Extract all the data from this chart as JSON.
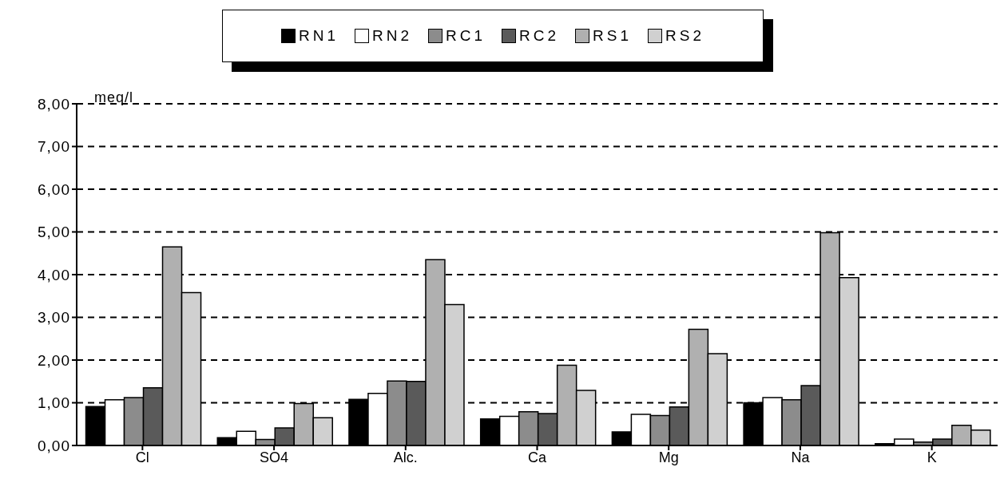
{
  "chart_data": {
    "type": "bar",
    "ylabel": "meq/l",
    "categories": [
      "Cl",
      "SO4",
      "Alc.",
      "Ca",
      "Mg",
      "Na",
      "K"
    ],
    "series": [
      {
        "name": "RN1",
        "color": "#000000",
        "values": [
          0.91,
          0.18,
          1.08,
          0.62,
          0.32,
          1.0,
          0.04
        ]
      },
      {
        "name": "RN2",
        "color": "#ffffff",
        "values": [
          1.07,
          0.33,
          1.22,
          0.68,
          0.73,
          1.12,
          0.15
        ]
      },
      {
        "name": "RC1",
        "color": "#8c8c8c",
        "values": [
          1.12,
          0.14,
          1.51,
          0.79,
          0.7,
          1.07,
          0.08
        ]
      },
      {
        "name": "RC2",
        "color": "#5a5a5a",
        "values": [
          1.35,
          0.41,
          1.5,
          0.75,
          0.9,
          1.4,
          0.15
        ]
      },
      {
        "name": "RS1",
        "color": "#b0b0b0",
        "values": [
          4.65,
          0.98,
          4.35,
          1.88,
          2.72,
          4.98,
          0.47
        ]
      },
      {
        "name": "RS2",
        "color": "#d0d0d0",
        "values": [
          3.58,
          0.65,
          3.3,
          1.29,
          2.15,
          3.93,
          0.36
        ]
      }
    ],
    "ylim": [
      0,
      8
    ],
    "yticks": [
      {
        "value": 0,
        "label": "0,00"
      },
      {
        "value": 1,
        "label": "1,00"
      },
      {
        "value": 2,
        "label": "2,00"
      },
      {
        "value": 3,
        "label": "3,00"
      },
      {
        "value": 4,
        "label": "4,00"
      },
      {
        "value": 5,
        "label": "5,00"
      },
      {
        "value": 6,
        "label": "6,00"
      },
      {
        "value": 7,
        "label": "7,00"
      },
      {
        "value": 8,
        "label": "8,00"
      }
    ],
    "grid": "y",
    "legend": "top"
  }
}
